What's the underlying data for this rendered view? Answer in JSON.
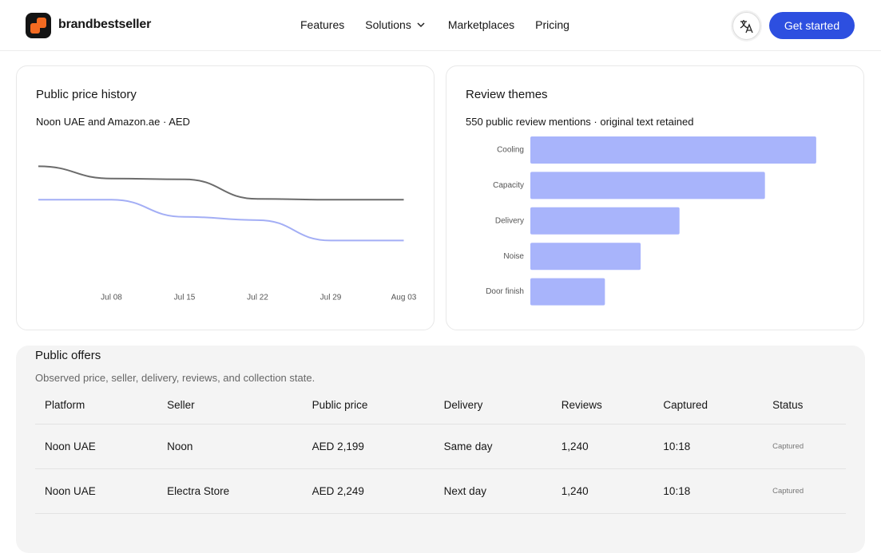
{
  "nav": {
    "brand": "brandbestseller",
    "links": [
      "Features",
      "Solutions",
      "Marketplaces",
      "Pricing"
    ],
    "cta": "Get started"
  },
  "chart_data": [
    {
      "type": "line",
      "title": "Public price history",
      "subtitle": "Noon UAE and Amazon.ae · AED",
      "x": [
        null,
        "Jul 08",
        "Jul 15",
        "Jul 22",
        "Jul 29",
        "Aug 03"
      ],
      "series": [
        {
          "color": "#6b6b6b",
          "values": [
            2290,
            2275,
            2274,
            2250,
            2249,
            2249
          ]
        },
        {
          "color": "#a3aef5",
          "values": [
            2249,
            2249,
            2228,
            2224,
            2199,
            2199
          ]
        }
      ],
      "ylim": [
        2170,
        2310
      ]
    },
    {
      "type": "bar",
      "orientation": "horizontal",
      "title": "Review themes",
      "subtitle": "550 public review mentions · original text retained",
      "categories": [
        "Cooling",
        "Capacity",
        "Delivery",
        "Noise",
        "Door finish"
      ],
      "values": [
        184,
        151,
        96,
        71,
        48
      ],
      "color": "#a8b4fb",
      "xlim": [
        0,
        200
      ]
    }
  ],
  "offers": {
    "title": "Public offers",
    "subtitle": "Observed price, seller, delivery, reviews, and collection state.",
    "columns": [
      "Platform",
      "Seller",
      "Public price",
      "Delivery",
      "Reviews",
      "Captured",
      "Status"
    ],
    "rows": [
      [
        "Noon UAE",
        "Noon",
        "AED 2,199",
        "Same day",
        "1,240",
        "10:18",
        "Captured"
      ],
      [
        "Noon UAE",
        "Electra Store",
        "AED 2,249",
        "Next day",
        "1,240",
        "10:18",
        "Captured"
      ]
    ]
  }
}
